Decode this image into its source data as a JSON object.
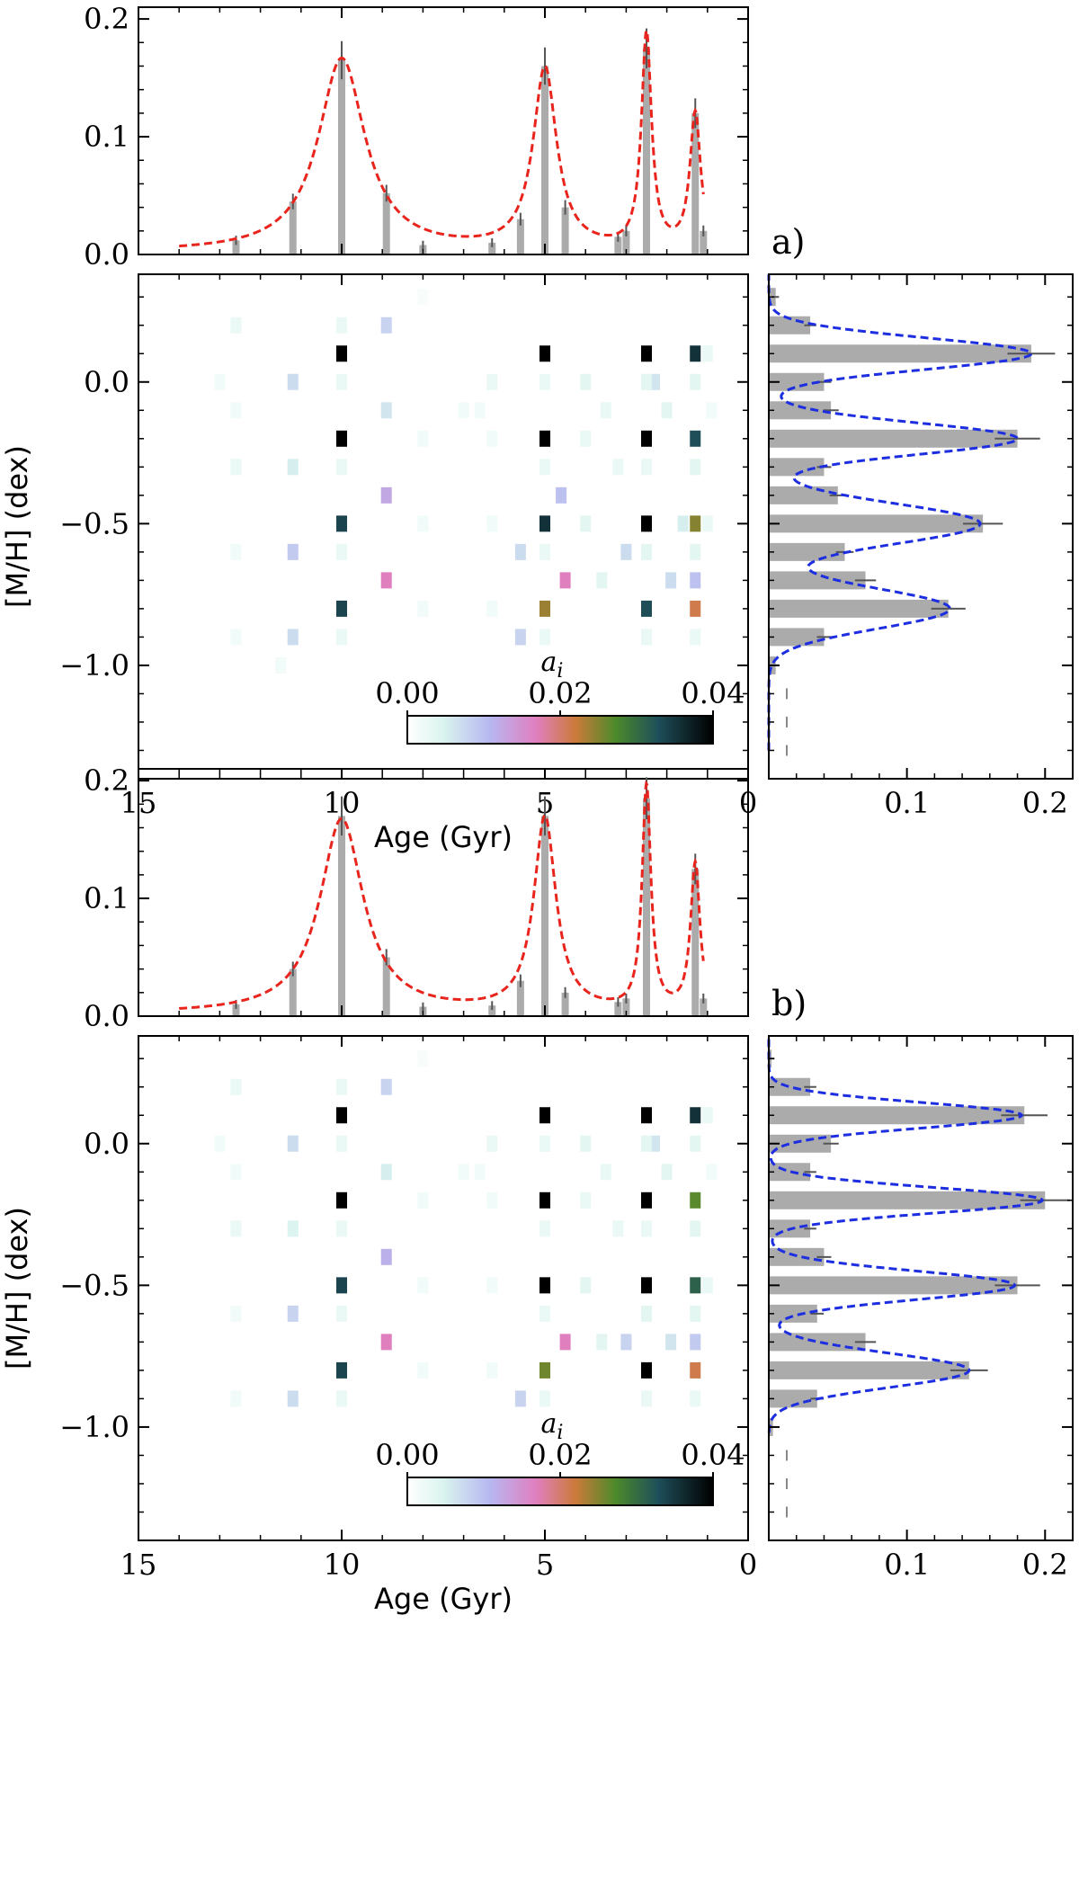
{
  "figure": {
    "colorbar_ticks": [
      "0.00",
      "0.02",
      "0.04"
    ],
    "colorbar_label": "a",
    "colorbar_label_sub": "i"
  },
  "chart_data": [
    {
      "type": "heatmap",
      "panel_label": "a)",
      "xlabel": "Age (Gyr)",
      "ylabel": "[M/H] (dex)",
      "xlim": [
        15,
        0
      ],
      "ylim": [
        -1.4,
        0.38
      ],
      "xticks": [
        15,
        10,
        5,
        0
      ],
      "yticks": [
        "0.0",
        "−0.5",
        "−1.0"
      ],
      "top": {
        "ylim": [
          0,
          0.21
        ],
        "yticks": [
          "0.0",
          "0.1",
          "0.2"
        ],
        "bars": [
          [
            12.6,
            0.012
          ],
          [
            11.2,
            0.045
          ],
          [
            10.0,
            0.165
          ],
          [
            8.9,
            0.052
          ],
          [
            8.0,
            0.008
          ],
          [
            6.3,
            0.01
          ],
          [
            5.6,
            0.03
          ],
          [
            5.0,
            0.16
          ],
          [
            4.5,
            0.04
          ],
          [
            3.2,
            0.015
          ],
          [
            3.0,
            0.02
          ],
          [
            2.5,
            0.175
          ],
          [
            1.3,
            0.12
          ],
          [
            1.1,
            0.02
          ]
        ],
        "peaks": [
          [
            10.0,
            0.164,
            0.7
          ],
          [
            5.0,
            0.154,
            0.35
          ],
          [
            2.5,
            0.182,
            0.15
          ],
          [
            1.3,
            0.115,
            0.16
          ]
        ],
        "xrange": [
          14.0,
          1.1
        ]
      },
      "side": {
        "xlim": [
          0,
          0.22
        ],
        "xticks": [
          "0.1",
          "0.2"
        ],
        "bars": [
          [
            0.3,
            0.005
          ],
          [
            0.2,
            0.03
          ],
          [
            0.1,
            0.19
          ],
          [
            0.0,
            0.04
          ],
          [
            -0.1,
            0.045
          ],
          [
            -0.2,
            0.18
          ],
          [
            -0.3,
            0.04
          ],
          [
            -0.4,
            0.05
          ],
          [
            -0.5,
            0.155
          ],
          [
            -0.6,
            0.055
          ],
          [
            -0.7,
            0.07
          ],
          [
            -0.8,
            0.13
          ],
          [
            -0.9,
            0.04
          ],
          [
            -1.0,
            0.005
          ]
        ],
        "peaks": [
          [
            0.1,
            0.19,
            0.055
          ],
          [
            -0.2,
            0.18,
            0.055
          ],
          [
            -0.5,
            0.153,
            0.07
          ],
          [
            -0.8,
            0.131,
            0.07
          ]
        ],
        "yrange": [
          -1.3,
          0.38
        ]
      },
      "cells": [
        [
          10.0,
          0.1,
          0.045
        ],
        [
          5.0,
          0.1,
          0.045
        ],
        [
          2.5,
          0.1,
          0.045
        ],
        [
          1.3,
          0.1,
          0.04
        ],
        [
          10.0,
          -0.2,
          0.045
        ],
        [
          5.0,
          -0.2,
          0.045
        ],
        [
          2.5,
          -0.2,
          0.045
        ],
        [
          1.3,
          -0.2,
          0.037
        ],
        [
          10.0,
          -0.5,
          0.038
        ],
        [
          5.0,
          -0.5,
          0.04
        ],
        [
          2.5,
          -0.5,
          0.045
        ],
        [
          1.3,
          -0.5,
          0.028
        ],
        [
          10.0,
          -0.8,
          0.038
        ],
        [
          5.0,
          -0.8,
          0.027
        ],
        [
          2.5,
          -0.8,
          0.037
        ],
        [
          1.3,
          -0.8,
          0.024
        ],
        [
          8.9,
          0.2,
          0.009
        ],
        [
          8.9,
          -0.4,
          0.014
        ],
        [
          8.9,
          -0.7,
          0.019
        ],
        [
          4.5,
          -0.7,
          0.019
        ],
        [
          4.6,
          -0.4,
          0.011
        ],
        [
          11.2,
          0.0,
          0.008
        ],
        [
          11.2,
          -0.3,
          0.006
        ],
        [
          11.2,
          -0.6,
          0.01
        ],
        [
          11.2,
          -0.9,
          0.008
        ],
        [
          8.9,
          -0.1,
          0.007
        ],
        [
          5.6,
          -0.6,
          0.008
        ],
        [
          5.6,
          -0.9,
          0.009
        ],
        [
          3.0,
          -0.6,
          0.008
        ],
        [
          2.3,
          0.0,
          0.007
        ],
        [
          1.9,
          -0.7,
          0.008
        ],
        [
          1.3,
          -0.7,
          0.011
        ],
        [
          1.6,
          -0.5,
          0.006
        ],
        [
          12.6,
          0.2,
          0.003
        ],
        [
          12.6,
          -0.1,
          0.002
        ],
        [
          12.6,
          -0.3,
          0.003
        ],
        [
          12.6,
          -0.6,
          0.002
        ],
        [
          12.6,
          -0.9,
          0.002
        ],
        [
          13.0,
          0.0,
          0.002
        ],
        [
          10.0,
          0.2,
          0.003
        ],
        [
          10.0,
          0.0,
          0.003
        ],
        [
          10.0,
          -0.3,
          0.003
        ],
        [
          10.0,
          -0.6,
          0.003
        ],
        [
          10.0,
          -0.9,
          0.003
        ],
        [
          6.3,
          0.0,
          0.003
        ],
        [
          6.3,
          -0.2,
          0.002
        ],
        [
          6.3,
          -0.5,
          0.002
        ],
        [
          6.3,
          -0.8,
          0.002
        ],
        [
          6.6,
          -0.1,
          0.002
        ],
        [
          5.0,
          0.0,
          0.003
        ],
        [
          5.0,
          -0.3,
          0.003
        ],
        [
          5.0,
          -0.6,
          0.003
        ],
        [
          5.0,
          -0.9,
          0.003
        ],
        [
          4.0,
          0.0,
          0.004
        ],
        [
          4.0,
          -0.2,
          0.003
        ],
        [
          4.0,
          -0.5,
          0.004
        ],
        [
          3.5,
          -0.1,
          0.003
        ],
        [
          3.2,
          -0.3,
          0.003
        ],
        [
          3.6,
          -0.7,
          0.004
        ],
        [
          2.5,
          0.0,
          0.004
        ],
        [
          2.5,
          -0.3,
          0.003
        ],
        [
          2.5,
          -0.6,
          0.004
        ],
        [
          2.5,
          -0.9,
          0.003
        ],
        [
          2.0,
          -0.1,
          0.004
        ],
        [
          1.3,
          0.0,
          0.004
        ],
        [
          1.3,
          -0.3,
          0.004
        ],
        [
          1.3,
          -0.6,
          0.004
        ],
        [
          1.3,
          -0.9,
          0.003
        ],
        [
          1.0,
          0.1,
          0.003
        ],
        [
          0.9,
          -0.1,
          0.002
        ],
        [
          1.0,
          -0.5,
          0.003
        ],
        [
          8.0,
          0.3,
          0.001
        ],
        [
          8.0,
          -0.2,
          0.002
        ],
        [
          8.0,
          -0.5,
          0.002
        ],
        [
          8.0,
          -0.8,
          0.002
        ],
        [
          7.0,
          -0.1,
          0.002
        ],
        [
          11.5,
          -1.0,
          0.002
        ]
      ]
    },
    {
      "type": "heatmap",
      "panel_label": "b)",
      "xlabel": "Age (Gyr)",
      "ylabel": "[M/H] (dex)",
      "xlim": [
        15,
        0
      ],
      "ylim": [
        -1.4,
        0.38
      ],
      "xticks": [
        15,
        10,
        5,
        0
      ],
      "yticks": [
        "0.0",
        "−0.5",
        "−1.0"
      ],
      "top": {
        "ylim": [
          0,
          0.21
        ],
        "yticks": [
          "0.0",
          "0.1",
          "0.2"
        ],
        "bars": [
          [
            12.6,
            0.01
          ],
          [
            11.2,
            0.04
          ],
          [
            10.0,
            0.17
          ],
          [
            8.9,
            0.05
          ],
          [
            8.0,
            0.008
          ],
          [
            6.3,
            0.009
          ],
          [
            5.6,
            0.03
          ],
          [
            5.0,
            0.17
          ],
          [
            4.5,
            0.02
          ],
          [
            3.2,
            0.012
          ],
          [
            3.0,
            0.015
          ],
          [
            2.5,
            0.185
          ],
          [
            1.3,
            0.125
          ],
          [
            1.1,
            0.015
          ]
        ],
        "peaks": [
          [
            10.0,
            0.165,
            0.65
          ],
          [
            5.0,
            0.165,
            0.33
          ],
          [
            2.5,
            0.19,
            0.13
          ],
          [
            1.3,
            0.125,
            0.14
          ]
        ],
        "xrange": [
          14.0,
          1.1
        ]
      },
      "side": {
        "xlim": [
          0,
          0.22
        ],
        "xticks": [
          "0.1",
          "0.2"
        ],
        "bars": [
          [
            0.3,
            0.002
          ],
          [
            0.2,
            0.03
          ],
          [
            0.1,
            0.185
          ],
          [
            0.0,
            0.045
          ],
          [
            -0.1,
            0.03
          ],
          [
            -0.2,
            0.2
          ],
          [
            -0.3,
            0.03
          ],
          [
            -0.4,
            0.04
          ],
          [
            -0.5,
            0.18
          ],
          [
            -0.6,
            0.035
          ],
          [
            -0.7,
            0.07
          ],
          [
            -0.8,
            0.145
          ],
          [
            -0.9,
            0.035
          ],
          [
            -1.0,
            0.003
          ]
        ],
        "peaks": [
          [
            0.1,
            0.183,
            0.045
          ],
          [
            -0.2,
            0.198,
            0.045
          ],
          [
            -0.5,
            0.178,
            0.05
          ],
          [
            -0.8,
            0.145,
            0.06
          ]
        ],
        "yrange": [
          -1.02,
          0.38
        ]
      },
      "cells": [
        [
          10.0,
          0.1,
          0.045
        ],
        [
          5.0,
          0.1,
          0.045
        ],
        [
          2.5,
          0.1,
          0.045
        ],
        [
          1.3,
          0.1,
          0.04
        ],
        [
          10.0,
          -0.2,
          0.045
        ],
        [
          5.0,
          -0.2,
          0.045
        ],
        [
          2.5,
          -0.2,
          0.045
        ],
        [
          1.3,
          -0.2,
          0.03
        ],
        [
          10.0,
          -0.5,
          0.038
        ],
        [
          5.0,
          -0.5,
          0.045
        ],
        [
          2.5,
          -0.5,
          0.045
        ],
        [
          1.3,
          -0.5,
          0.035
        ],
        [
          10.0,
          -0.8,
          0.038
        ],
        [
          5.0,
          -0.8,
          0.029
        ],
        [
          2.5,
          -0.8,
          0.045
        ],
        [
          1.3,
          -0.8,
          0.024
        ],
        [
          8.9,
          0.2,
          0.009
        ],
        [
          8.9,
          -0.4,
          0.013
        ],
        [
          8.9,
          -0.7,
          0.019
        ],
        [
          4.5,
          -0.7,
          0.019
        ],
        [
          11.2,
          0.0,
          0.008
        ],
        [
          11.2,
          -0.3,
          0.005
        ],
        [
          11.2,
          -0.6,
          0.009
        ],
        [
          11.2,
          -0.9,
          0.008
        ],
        [
          8.9,
          -0.1,
          0.006
        ],
        [
          5.6,
          -0.9,
          0.009
        ],
        [
          3.0,
          -0.7,
          0.009
        ],
        [
          2.3,
          0.0,
          0.007
        ],
        [
          1.3,
          -0.7,
          0.01
        ],
        [
          1.9,
          -0.7,
          0.007
        ],
        [
          12.6,
          0.2,
          0.003
        ],
        [
          12.6,
          -0.1,
          0.002
        ],
        [
          12.6,
          -0.3,
          0.003
        ],
        [
          12.6,
          -0.6,
          0.002
        ],
        [
          12.6,
          -0.9,
          0.002
        ],
        [
          13.0,
          0.0,
          0.002
        ],
        [
          10.0,
          0.2,
          0.003
        ],
        [
          10.0,
          0.0,
          0.003
        ],
        [
          10.0,
          -0.3,
          0.003
        ],
        [
          10.0,
          -0.6,
          0.003
        ],
        [
          10.0,
          -0.9,
          0.003
        ],
        [
          6.3,
          0.0,
          0.003
        ],
        [
          6.3,
          -0.2,
          0.002
        ],
        [
          6.3,
          -0.5,
          0.002
        ],
        [
          6.3,
          -0.8,
          0.002
        ],
        [
          6.6,
          -0.1,
          0.002
        ],
        [
          5.0,
          0.0,
          0.003
        ],
        [
          5.0,
          -0.3,
          0.003
        ],
        [
          5.0,
          -0.6,
          0.003
        ],
        [
          5.0,
          -0.9,
          0.003
        ],
        [
          4.0,
          0.0,
          0.004
        ],
        [
          4.0,
          -0.2,
          0.003
        ],
        [
          4.0,
          -0.5,
          0.004
        ],
        [
          3.5,
          -0.1,
          0.003
        ],
        [
          3.2,
          -0.3,
          0.003
        ],
        [
          3.6,
          -0.7,
          0.004
        ],
        [
          2.5,
          0.0,
          0.004
        ],
        [
          2.5,
          -0.3,
          0.003
        ],
        [
          2.5,
          -0.6,
          0.004
        ],
        [
          2.5,
          -0.9,
          0.003
        ],
        [
          2.0,
          -0.1,
          0.004
        ],
        [
          1.3,
          0.0,
          0.004
        ],
        [
          1.3,
          -0.3,
          0.004
        ],
        [
          1.3,
          -0.6,
          0.004
        ],
        [
          1.3,
          -0.9,
          0.003
        ],
        [
          1.0,
          0.1,
          0.003
        ],
        [
          0.9,
          -0.1,
          0.002
        ],
        [
          1.0,
          -0.5,
          0.003
        ],
        [
          8.0,
          0.3,
          0.001
        ],
        [
          8.0,
          -0.2,
          0.002
        ],
        [
          8.0,
          -0.5,
          0.002
        ],
        [
          8.0,
          -0.8,
          0.002
        ],
        [
          7.0,
          -0.1,
          0.002
        ]
      ]
    }
  ]
}
